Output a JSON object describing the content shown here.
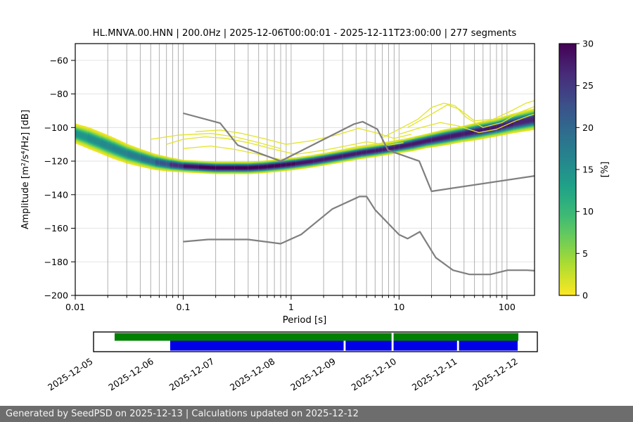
{
  "meta": {
    "station": "HL.MNVA.00.HNN",
    "sampling_rate": "200.0Hz",
    "time_range": "2025-12-06T00:00:01 - 2025-12-11T23:00:00",
    "segments": 277
  },
  "chart_data": {
    "type": "heatmap",
    "title": "HL.MNVA.00.HNN | 200.0Hz | 2025-12-06T00:00:01 - 2025-12-11T23:00:00 | 277 segments",
    "xlabel": "Period [s]",
    "ylabel": "Amplitude [m²/s⁴/Hz] [dB]",
    "xscale": "log",
    "xlim": [
      0.01,
      180
    ],
    "ylim": [
      -200,
      -50
    ],
    "xticks": [
      0.01,
      0.1,
      1,
      10,
      100
    ],
    "xtick_labels": [
      "0.01",
      "0.1",
      "1",
      "10",
      "100"
    ],
    "yticks": [
      -60,
      -80,
      -100,
      -120,
      -140,
      -160,
      -180,
      -200
    ],
    "grid": true,
    "colorbar": {
      "label": "[%]",
      "min": 0,
      "max": 30,
      "ticks": [
        0,
        5,
        10,
        15,
        20,
        25,
        30
      ],
      "colormap": "viridis_r"
    },
    "psd_band": {
      "periods": [
        0.01,
        0.013,
        0.017,
        0.022,
        0.03,
        0.04,
        0.055,
        0.075,
        0.1,
        0.14,
        0.2,
        0.28,
        0.4,
        0.55,
        0.8,
        1.1,
        1.6,
        2.2,
        3,
        4.5,
        6.5,
        9,
        13,
        18,
        26,
        38,
        55,
        80,
        115,
        180
      ],
      "mode_db": [
        -103.5,
        -106,
        -109,
        -112,
        -115.5,
        -118,
        -120.5,
        -122,
        -123,
        -123.5,
        -124,
        -124,
        -124,
        -123.5,
        -122.5,
        -121.5,
        -120,
        -118.5,
        -117,
        -115,
        -113.5,
        -112,
        -110,
        -108,
        -106,
        -104,
        -102,
        -100,
        -97.5,
        -95
      ],
      "halfwidth_db": [
        5.5,
        6,
        6,
        6,
        5.5,
        5,
        4.5,
        4,
        3.5,
        3.5,
        3.5,
        3.5,
        3.5,
        3.5,
        3.5,
        3.5,
        3.5,
        3.5,
        3.5,
        3.5,
        3.5,
        3.5,
        4,
        4,
        4.5,
        4.5,
        5,
        5,
        5.5,
        6
      ],
      "peak_pct": [
        14,
        15,
        16,
        16,
        17,
        18,
        20,
        24,
        28,
        30,
        30,
        30,
        30,
        30,
        30,
        29,
        28,
        28,
        28,
        28,
        28,
        28,
        28,
        28,
        28,
        28,
        28,
        28,
        28,
        26
      ]
    },
    "outlier_curves": [
      [
        [
          0.07,
          -110
        ],
        [
          0.1,
          -107
        ],
        [
          0.16,
          -105.5
        ],
        [
          0.25,
          -106.5
        ],
        [
          0.4,
          -109
        ],
        [
          0.7,
          -113
        ],
        [
          1.1,
          -116
        ],
        [
          2,
          -113.5
        ],
        [
          3.2,
          -111
        ],
        [
          5,
          -108.5
        ],
        [
          8,
          -110.5
        ],
        [
          11,
          -109
        ]
      ],
      [
        [
          0.1,
          -112.5
        ],
        [
          0.18,
          -111
        ],
        [
          0.3,
          -113
        ],
        [
          0.5,
          -116
        ],
        [
          0.8,
          -119
        ],
        [
          1.3,
          -117.5
        ],
        [
          2.2,
          -115
        ],
        [
          4,
          -111.5
        ],
        [
          6.5,
          -109.5
        ],
        [
          10,
          -107.5
        ],
        [
          14,
          -106
        ]
      ],
      [
        [
          0.13,
          -102.5
        ],
        [
          0.22,
          -101.5
        ],
        [
          0.35,
          -103.5
        ],
        [
          0.55,
          -106.5
        ],
        [
          0.9,
          -110
        ],
        [
          1.5,
          -108
        ],
        [
          2.6,
          -104.5
        ],
        [
          4.2,
          -100.5
        ],
        [
          6,
          -103
        ],
        [
          9,
          -106.5
        ],
        [
          13,
          -104
        ]
      ],
      [
        [
          7,
          -106
        ],
        [
          10,
          -101
        ],
        [
          15,
          -95
        ],
        [
          20,
          -88
        ],
        [
          26,
          -85.5
        ],
        [
          33,
          -87
        ],
        [
          42,
          -94
        ],
        [
          60,
          -100
        ],
        [
          90,
          -97
        ],
        [
          130,
          -91
        ],
        [
          180,
          -87.5
        ]
      ],
      [
        [
          12,
          -100
        ],
        [
          20,
          -92
        ],
        [
          28,
          -86.5
        ],
        [
          36,
          -89
        ],
        [
          50,
          -96
        ],
        [
          75,
          -95
        ],
        [
          110,
          -90
        ],
        [
          150,
          -85.5
        ],
        [
          180,
          -84
        ]
      ],
      [
        [
          0.05,
          -107
        ],
        [
          0.09,
          -104.5
        ],
        [
          0.18,
          -103.5
        ],
        [
          0.3,
          -105.5
        ],
        [
          0.5,
          -109
        ],
        [
          0.8,
          -112.5
        ]
      ],
      [
        [
          10,
          -104
        ],
        [
          16,
          -100
        ],
        [
          24,
          -97
        ],
        [
          35,
          -99
        ],
        [
          55,
          -103
        ],
        [
          80,
          -101
        ],
        [
          120,
          -96
        ],
        [
          160,
          -93
        ],
        [
          180,
          -92
        ]
      ]
    ],
    "noise_models": {
      "nhnm": [
        [
          0.1,
          -91.5
        ],
        [
          0.22,
          -97.4
        ],
        [
          0.32,
          -110.5
        ],
        [
          0.8,
          -120
        ],
        [
          3.8,
          -98
        ],
        [
          4.6,
          -96.5
        ],
        [
          6.3,
          -101
        ],
        [
          7.9,
          -113.5
        ],
        [
          15.4,
          -120
        ],
        [
          20,
          -138
        ],
        [
          180,
          -128.8
        ]
      ],
      "nlnm": [
        [
          0.1,
          -168
        ],
        [
          0.17,
          -166.7
        ],
        [
          0.4,
          -166.7
        ],
        [
          0.8,
          -169.2
        ],
        [
          1.24,
          -163.7
        ],
        [
          2.4,
          -148.6
        ],
        [
          4.3,
          -141.1
        ],
        [
          5,
          -141.1
        ],
        [
          6,
          -149
        ],
        [
          10,
          -163.8
        ],
        [
          12,
          -166.2
        ],
        [
          15.6,
          -162.1
        ],
        [
          21.9,
          -177.5
        ],
        [
          31.6,
          -185
        ],
        [
          45,
          -187.5
        ],
        [
          70,
          -187.5
        ],
        [
          101,
          -185
        ],
        [
          154,
          -185
        ],
        [
          180,
          -185.3
        ]
      ]
    }
  },
  "timeline": {
    "labels": [
      "2025-12-05",
      "2025-12-06",
      "2025-12-07",
      "2025-12-08",
      "2025-12-09",
      "2025-12-10",
      "2025-12-11",
      "2025-12-12"
    ],
    "green_segments": [
      [
        0.0475,
        0.6715
      ],
      [
        0.676,
        0.9572
      ]
    ],
    "blue_segments": [
      [
        0.1727,
        0.5635
      ],
      [
        0.568,
        0.6715
      ],
      [
        0.676,
        0.819
      ],
      [
        0.8235,
        0.9556
      ]
    ]
  },
  "colors": {
    "timeline_green": "#008000",
    "timeline_blue": "#0000e6",
    "model_line": "#7f7f7f",
    "footer_bg": "#6d6d6d",
    "density_max": "#440154",
    "density_min": "#fde725"
  },
  "footer": {
    "text": "Generated by SeedPSD on 2025-12-13 | Calculations updated on 2025-12-12"
  }
}
